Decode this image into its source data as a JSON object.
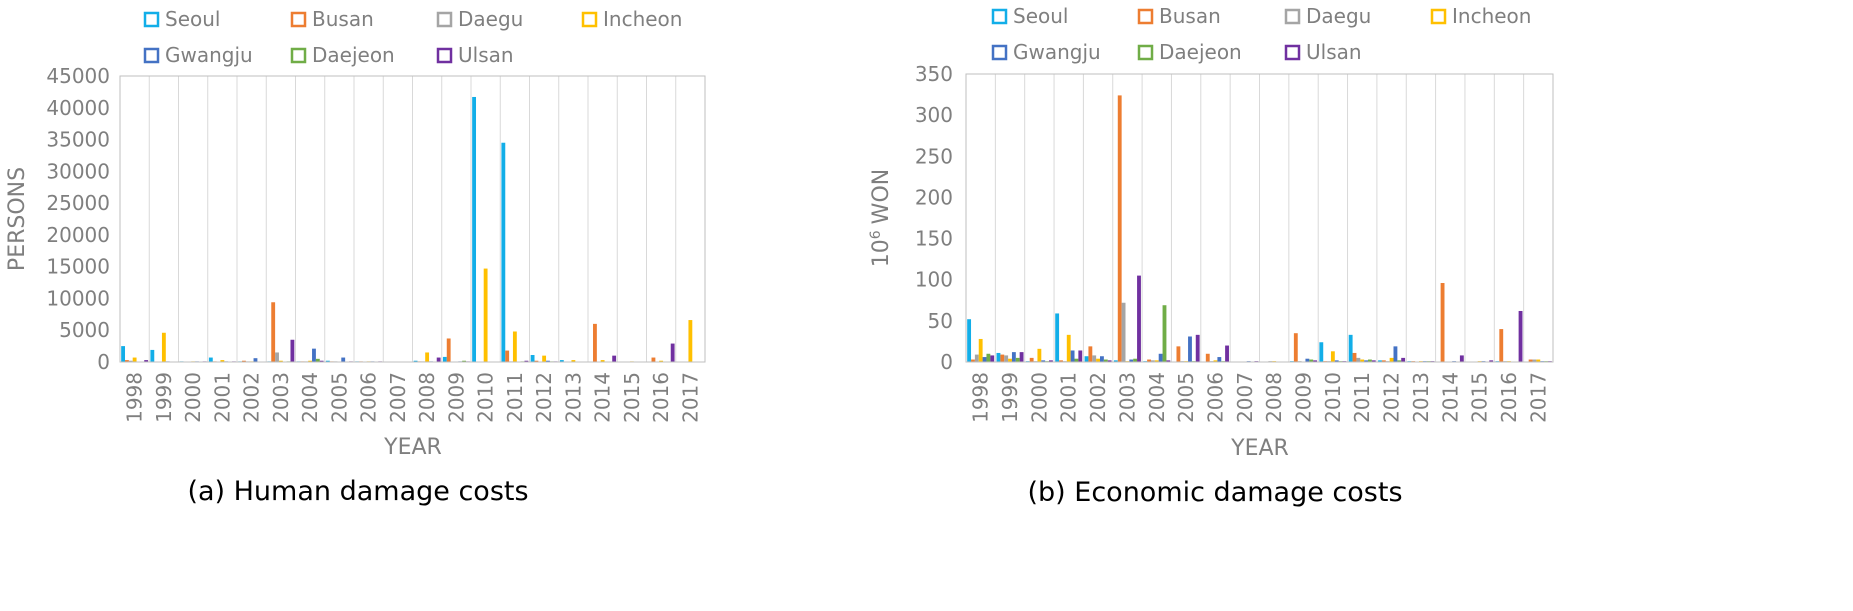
{
  "chart_data": [
    {
      "type": "bar",
      "caption": "(a) Human damage costs",
      "xlabel": "YEAR",
      "ylabel": "PERSONS",
      "ylim": [
        0,
        45000
      ],
      "yticks": [
        0,
        5000,
        10000,
        15000,
        20000,
        25000,
        30000,
        35000,
        40000,
        45000
      ],
      "grid": "vertical",
      "legend": "top",
      "categories": [
        "1998",
        "1999",
        "2000",
        "2001",
        "2002",
        "2003",
        "2004",
        "2005",
        "2006",
        "2007",
        "2008",
        "2009",
        "2010",
        "2011",
        "2012",
        "2013",
        "2014",
        "2015",
        "2016",
        "2017"
      ],
      "series": [
        {
          "name": "Seoul",
          "color": "#12aee8",
          "values": [
            2500,
            1900,
            100,
            700,
            100,
            100,
            100,
            200,
            100,
            0,
            200,
            800,
            41700,
            34500,
            1100,
            300,
            0,
            0,
            0,
            0
          ]
        },
        {
          "name": "Busan",
          "color": "#ed7d31",
          "values": [
            300,
            0,
            0,
            100,
            200,
            9400,
            100,
            100,
            100,
            0,
            100,
            3700,
            0,
            1800,
            200,
            0,
            6000,
            0,
            700,
            0
          ]
        },
        {
          "name": "Daegu",
          "color": "#a5a5a5",
          "values": [
            200,
            0,
            0,
            0,
            100,
            1500,
            100,
            100,
            0,
            0,
            100,
            0,
            0,
            100,
            0,
            0,
            0,
            0,
            0,
            0
          ]
        },
        {
          "name": "Incheon",
          "color": "#ffc000",
          "values": [
            700,
            4600,
            100,
            300,
            100,
            200,
            200,
            0,
            100,
            0,
            1500,
            0,
            14700,
            4800,
            1000,
            300,
            300,
            100,
            200,
            6600
          ]
        },
        {
          "name": "Gwangju",
          "color": "#4472c4",
          "values": [
            0,
            100,
            100,
            100,
            600,
            0,
            2100,
            700,
            100,
            0,
            100,
            100,
            0,
            0,
            200,
            0,
            0,
            0,
            0,
            0
          ]
        },
        {
          "name": "Daejeon",
          "color": "#70ad47",
          "values": [
            0,
            0,
            0,
            0,
            0,
            100,
            500,
            0,
            0,
            0,
            0,
            200,
            0,
            100,
            100,
            0,
            0,
            0,
            0,
            0
          ]
        },
        {
          "name": "Ulsan",
          "color": "#7030a0",
          "values": [
            300,
            0,
            100,
            100,
            0,
            3500,
            200,
            100,
            100,
            0,
            700,
            100,
            0,
            200,
            100,
            0,
            1000,
            0,
            2900,
            0
          ]
        }
      ]
    },
    {
      "type": "bar",
      "caption": "(b) Economic damage costs",
      "xlabel": "YEAR",
      "ylabel_base": "10",
      "ylabel_exp": "6",
      "ylabel_unit": "WON",
      "ylim": [
        0,
        350
      ],
      "yticks": [
        0,
        50,
        100,
        150,
        200,
        250,
        300,
        350
      ],
      "grid": "vertical",
      "legend": "top",
      "categories": [
        "1998",
        "1999",
        "2000",
        "2001",
        "2002",
        "2003",
        "2004",
        "2005",
        "2006",
        "2007",
        "2008",
        "2009",
        "2010",
        "2011",
        "2012",
        "2013",
        "2014",
        "2015",
        "2016",
        "2017"
      ],
      "series": [
        {
          "name": "Seoul",
          "color": "#12aee8",
          "values": [
            52,
            11,
            1,
            59,
            7,
            2,
            1,
            0,
            0,
            0,
            0,
            1,
            24,
            33,
            2,
            1,
            0,
            0,
            1,
            0
          ]
        },
        {
          "name": "Busan",
          "color": "#ed7d31",
          "values": [
            3,
            9,
            5,
            2,
            19,
            324,
            3,
            19,
            10,
            0,
            0,
            35,
            1,
            11,
            2,
            1,
            96,
            0,
            40,
            3
          ]
        },
        {
          "name": "Daegu",
          "color": "#a5a5a5",
          "values": [
            9,
            8,
            1,
            1,
            8,
            72,
            2,
            1,
            1,
            0,
            1,
            1,
            1,
            5,
            1,
            0,
            0,
            0,
            1,
            3
          ]
        },
        {
          "name": "Incheon",
          "color": "#ffc000",
          "values": [
            28,
            4,
            16,
            33,
            4,
            1,
            2,
            1,
            2,
            0,
            1,
            0,
            13,
            3,
            5,
            1,
            0,
            1,
            1,
            3
          ]
        },
        {
          "name": "Gwangju",
          "color": "#4472c4",
          "values": [
            6,
            12,
            2,
            14,
            7,
            3,
            10,
            31,
            6,
            1,
            0,
            4,
            2,
            2,
            19,
            1,
            1,
            1,
            0,
            1
          ]
        },
        {
          "name": "Daejeon",
          "color": "#70ad47",
          "values": [
            10,
            5,
            1,
            4,
            3,
            4,
            69,
            1,
            1,
            0,
            0,
            3,
            1,
            3,
            2,
            1,
            0,
            0,
            0,
            1
          ]
        },
        {
          "name": "Ulsan",
          "color": "#7030a0",
          "values": [
            8,
            12,
            2,
            14,
            2,
            105,
            2,
            33,
            20,
            1,
            0,
            2,
            1,
            2,
            5,
            1,
            8,
            2,
            62,
            1
          ]
        }
      ]
    }
  ]
}
